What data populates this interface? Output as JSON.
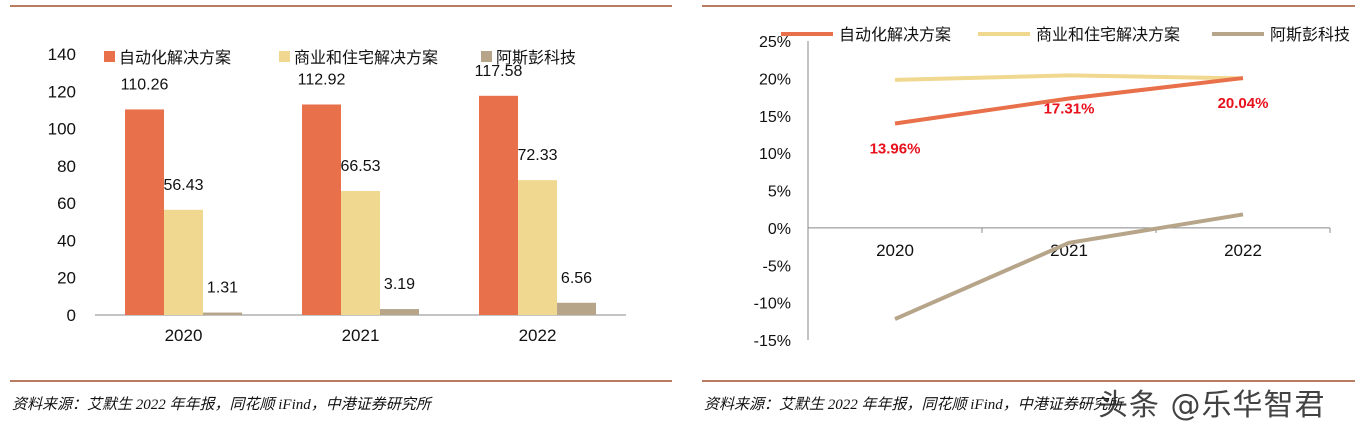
{
  "chart_data": [
    {
      "type": "bar",
      "categories": [
        "2020",
        "2021",
        "2022"
      ],
      "series": [
        {
          "name": "自动化解决方案",
          "values": [
            110.26,
            112.92,
            117.58
          ],
          "labels": [
            "110.26",
            "112.92",
            "117.58"
          ],
          "color": "#E8704A"
        },
        {
          "name": "商业和住宅解决方案",
          "values": [
            56.43,
            66.53,
            72.33
          ],
          "labels": [
            "56.43",
            "66.53",
            "72.33"
          ],
          "color": "#F0D890"
        },
        {
          "name": "阿斯彭科技",
          "values": [
            1.31,
            3.19,
            6.56
          ],
          "labels": [
            "1.31",
            "3.19",
            "6.56"
          ],
          "color": "#B7A58A"
        }
      ],
      "yticks": [
        "0",
        "20",
        "40",
        "60",
        "80",
        "100",
        "120",
        "140"
      ],
      "ylim": [
        0,
        140
      ],
      "legend": "top",
      "source": "资料来源：艾默生 2022 年年报，同花顺 iFind，中港证券研究所"
    },
    {
      "type": "line",
      "categories": [
        "2020",
        "2021",
        "2022"
      ],
      "series": [
        {
          "name": "自动化解决方案",
          "values": [
            13.96,
            17.31,
            20.04
          ],
          "labels": [
            "13.96%",
            "17.31%",
            "20.04%"
          ],
          "color": "#E8704A"
        },
        {
          "name": "商业和住宅解决方案",
          "values": [
            19.8,
            20.4,
            20.0
          ],
          "color": "#F0D890"
        },
        {
          "name": "阿斯彭科技",
          "values": [
            -12.2,
            -2.0,
            1.8
          ],
          "color": "#B7A58A"
        }
      ],
      "yticks": [
        "-15%",
        "-10%",
        "-5%",
        "0%",
        "5%",
        "10%",
        "15%",
        "20%",
        "25%"
      ],
      "ylim": [
        -15,
        25
      ],
      "label_color": "#E8101C",
      "legend": "top",
      "source": "资料来源：艾默生 2022 年年报，同花顺 iFind，中港证券研究所"
    }
  ],
  "watermark": "头条 @乐华智君"
}
